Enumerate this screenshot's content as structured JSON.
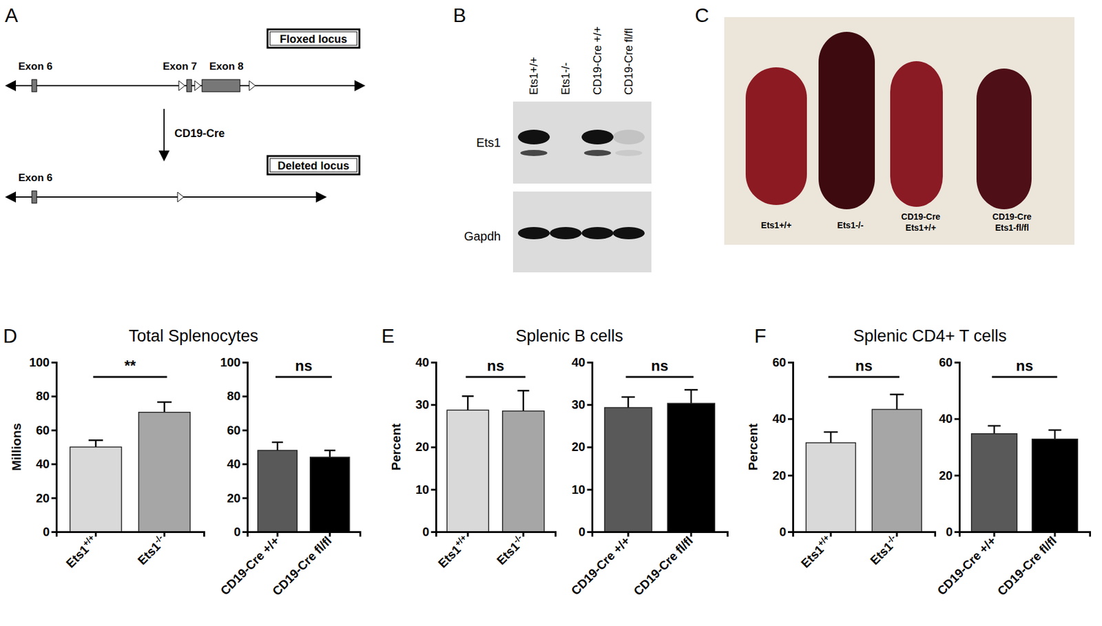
{
  "figure": {
    "panel_a": {
      "label": "A",
      "floxed_title": "Floxed locus",
      "floxed_exons": [
        "Exon 6",
        "Exon 7",
        "Exon 8"
      ],
      "arrow_label": "CD19-Cre",
      "deleted_title": "Deleted locus",
      "deleted_exons": [
        "Exon 6"
      ]
    },
    "panel_b": {
      "label": "B",
      "lanes": [
        "Ets1+/+",
        "Ets1-/-",
        "CD19-Cre +/+",
        "CD19-Cre fl/fl"
      ],
      "rows": [
        "Ets1",
        "Gapdh"
      ]
    },
    "panel_c": {
      "label": "C",
      "spleens": [
        [
          "Ets1+/+"
        ],
        [
          "Ets1-/-"
        ],
        [
          "CD19-Cre",
          "Ets1+/+"
        ],
        [
          "CD19-Cre",
          "Ets1-fl/fl"
        ]
      ]
    }
  },
  "chart_data": [
    {
      "type": "bar",
      "panel_label": "D",
      "title": "Total Splenocytes",
      "ylabel": "Millions",
      "categories": [
        "Ets1+/+",
        "Ets1-/-"
      ],
      "values": [
        50,
        70.5
      ],
      "errors": [
        4,
        6
      ],
      "colors": [
        "#d9d9d9",
        "#a6a6a6"
      ],
      "ylim": [
        0,
        100
      ],
      "yticks": [
        0,
        20,
        40,
        60,
        80,
        100
      ],
      "annotations": [
        {
          "text": "**"
        }
      ]
    },
    {
      "type": "bar",
      "categories": [
        "CD19-Cre +/+",
        "CD19-Cre fl/fl"
      ],
      "values": [
        48,
        44
      ],
      "errors": [
        4.8,
        4
      ],
      "colors": [
        "#595959",
        "#000000"
      ],
      "ylim": [
        0,
        100
      ],
      "yticks": [
        0,
        20,
        40,
        60,
        80,
        100
      ],
      "annotations": [
        {
          "text": "ns"
        }
      ]
    },
    {
      "type": "bar",
      "panel_label": "E",
      "title": "Splenic B cells",
      "ylabel": "Percent",
      "categories": [
        "Ets1+/+",
        "Ets1-/-"
      ],
      "values": [
        28.7,
        28.5
      ],
      "errors": [
        3.3,
        4.8
      ],
      "colors": [
        "#d9d9d9",
        "#a6a6a6"
      ],
      "ylim": [
        0,
        40
      ],
      "yticks": [
        0,
        10,
        20,
        30,
        40
      ],
      "annotations": [
        {
          "text": "ns"
        }
      ]
    },
    {
      "type": "bar",
      "categories": [
        "CD19-Cre +/+",
        "CD19-Cre fl/fl"
      ],
      "values": [
        29.3,
        30.3
      ],
      "errors": [
        2.5,
        3.2
      ],
      "colors": [
        "#595959",
        "#000000"
      ],
      "ylim": [
        0,
        40
      ],
      "yticks": [
        0,
        10,
        20,
        30,
        40
      ],
      "annotations": [
        {
          "text": "ns"
        }
      ]
    },
    {
      "type": "bar",
      "panel_label": "F",
      "title": "Splenic CD4+ T cells",
      "ylabel": "Percent",
      "categories": [
        "Ets1+/+",
        "Ets1-/-"
      ],
      "values": [
        31.5,
        43.3
      ],
      "errors": [
        3.8,
        5.3
      ],
      "colors": [
        "#d9d9d9",
        "#a6a6a6"
      ],
      "ylim": [
        0,
        60
      ],
      "yticks": [
        0,
        20,
        40,
        60
      ],
      "annotations": [
        {
          "text": "ns"
        }
      ]
    },
    {
      "type": "bar",
      "categories": [
        "CD19-Cre +/+",
        "CD19-Cre fl/fl"
      ],
      "values": [
        34.7,
        32.8
      ],
      "errors": [
        2.8,
        3.2
      ],
      "colors": [
        "#595959",
        "#000000"
      ],
      "ylim": [
        0,
        60
      ],
      "yticks": [
        0,
        20,
        40,
        60
      ],
      "annotations": [
        {
          "text": "ns"
        }
      ]
    }
  ]
}
